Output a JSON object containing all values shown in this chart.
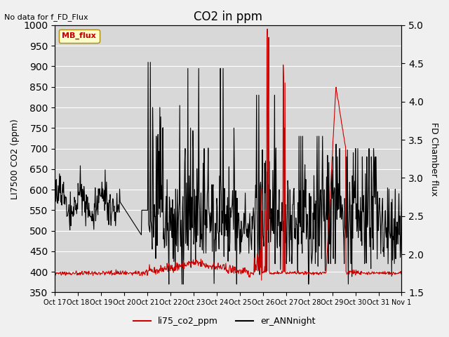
{
  "title": "CO2 in ppm",
  "top_left_text": "No data for f_FD_Flux",
  "ylabel_left": "LI7500 CO2 (ppm)",
  "ylabel_right": "FD Chamber flux",
  "ylim_left": [
    350,
    1000
  ],
  "ylim_right": [
    1.5,
    5.0
  ],
  "xtick_labels": [
    "Oct 17",
    "Oct 18",
    "Oct 19",
    "Oct 20",
    "Oct 21",
    "Oct 22",
    "Oct 23",
    "Oct 24",
    "Oct 25",
    "Oct 26",
    "Oct 27",
    "Oct 28",
    "Oct 29",
    "Oct 30",
    "Oct 31",
    "Nov 1"
  ],
  "background_color": "#d8d8d8",
  "grid_color": "#ffffff",
  "line1_color": "#cc0000",
  "line2_color": "#000000",
  "legend_entries": [
    "li75_co2_ppm",
    "er_ANNnight"
  ],
  "legend_colors": [
    "#cc0000",
    "#000000"
  ],
  "mb_flux_box_color": "#ffffcc",
  "mb_flux_text_color": "#cc0000"
}
